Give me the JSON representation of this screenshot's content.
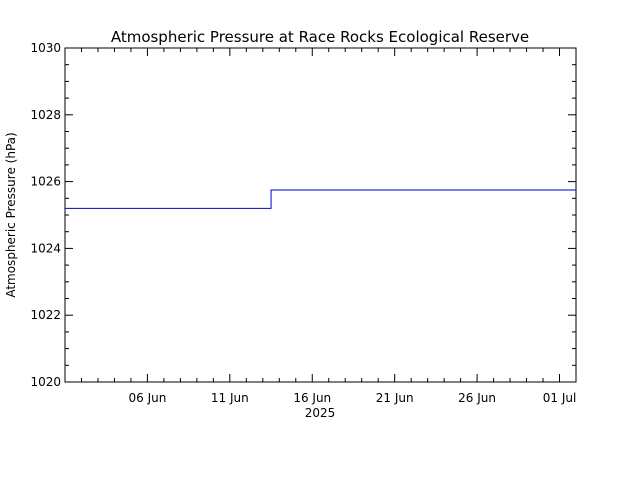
{
  "chart_data": {
    "type": "line",
    "title": "Atmospheric Pressure at Race Rocks Ecological Reserve",
    "ylabel": "Atmospheric Pressure (hPa)",
    "xlabel": "2025",
    "ylim": [
      1020,
      1030
    ],
    "yticks": [
      1020,
      1022,
      1024,
      1026,
      1028,
      1030
    ],
    "xlim": [
      "2025-06-01",
      "2025-07-02"
    ],
    "xticks": [
      {
        "date": "2025-06-06",
        "label": "06 Jun"
      },
      {
        "date": "2025-06-11",
        "label": "11 Jun"
      },
      {
        "date": "2025-06-16",
        "label": "16 Jun"
      },
      {
        "date": "2025-06-21",
        "label": "21 Jun"
      },
      {
        "date": "2025-06-26",
        "label": "26 Jun"
      },
      {
        "date": "2025-07-01",
        "label": "01 Jul"
      }
    ],
    "grid": false,
    "series": [
      {
        "color": "#0000cc",
        "x": [
          "2025-06-01",
          "2025-06-13.5",
          "2025-06-13.5",
          "2025-07-02"
        ],
        "values": [
          1025.2,
          1025.2,
          1025.75,
          1025.75
        ]
      }
    ]
  }
}
